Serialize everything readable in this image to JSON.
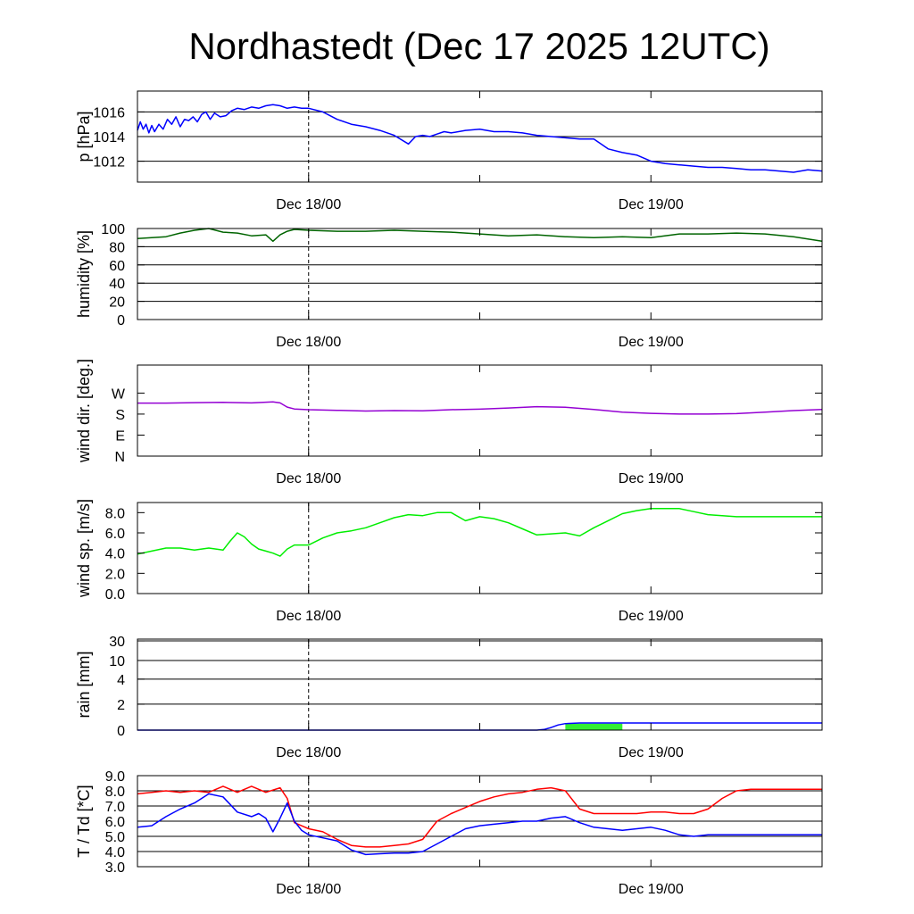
{
  "title": "Nordhastedt (Dec 17 2025 12UTC)",
  "colors": {
    "pressure": "#0000ff",
    "humidity": "#006400",
    "wind_dir": "#9400d3",
    "wind_speed": "#00ee00",
    "rain_line": "#0000ff",
    "rain_bar": "#33ee33",
    "temperature": "#ff0000",
    "dewpoint": "#0000ff",
    "grid": "#000000"
  },
  "chart_data": [
    {
      "type": "line",
      "name": "pressure",
      "ylabel": "p [hPa]",
      "ylim": [
        1010.3,
        1017.7
      ],
      "yticks": [
        1012,
        1014,
        1016
      ],
      "ytick_labels": [
        "1012",
        "1014",
        "1016"
      ],
      "gridlines": [
        1012,
        1014,
        1016
      ],
      "xlim": [
        -12,
        36
      ],
      "xticks": [
        0,
        24
      ],
      "xtick_labels": [
        "Dec 18/00",
        "Dec 19/00"
      ],
      "series": [
        {
          "color_key": "pressure",
          "x": [
            -12,
            -11.8,
            -11.6,
            -11.4,
            -11.2,
            -11.0,
            -10.8,
            -10.5,
            -10.2,
            -9.9,
            -9.6,
            -9.3,
            -9.0,
            -8.7,
            -8.4,
            -8.1,
            -7.8,
            -7.5,
            -7.2,
            -6.9,
            -6.6,
            -6.2,
            -5.8,
            -5.4,
            -5.0,
            -4.5,
            -4.0,
            -3.5,
            -3.0,
            -2.5,
            -2.0,
            -1.5,
            -1.0,
            -0.5,
            0,
            1,
            2,
            3,
            4,
            5,
            6,
            7,
            7.5,
            8,
            8.5,
            9,
            9.5,
            10,
            11,
            12,
            13,
            14,
            15,
            16,
            17,
            18,
            19,
            20,
            21,
            22,
            23,
            24,
            25,
            26,
            27,
            28,
            29,
            30,
            31,
            32,
            33,
            34,
            35,
            36
          ],
          "y": [
            1014.5,
            1015.2,
            1014.6,
            1015.0,
            1014.3,
            1014.9,
            1014.4,
            1015.0,
            1014.6,
            1015.4,
            1015.0,
            1015.6,
            1014.8,
            1015.4,
            1015.3,
            1015.6,
            1015.2,
            1015.8,
            1016.0,
            1015.4,
            1015.9,
            1015.6,
            1015.7,
            1016.1,
            1016.3,
            1016.2,
            1016.4,
            1016.3,
            1016.5,
            1016.6,
            1016.5,
            1016.3,
            1016.4,
            1016.3,
            1016.3,
            1016.0,
            1015.4,
            1015.0,
            1014.8,
            1014.5,
            1014.1,
            1013.4,
            1014.0,
            1014.1,
            1014.0,
            1014.2,
            1014.4,
            1014.3,
            1014.5,
            1014.6,
            1014.4,
            1014.4,
            1014.3,
            1014.1,
            1014.0,
            1013.9,
            1013.8,
            1013.8,
            1013.0,
            1012.7,
            1012.5,
            1012.0,
            1011.8,
            1011.7,
            1011.6,
            1011.5,
            1011.5,
            1011.4,
            1011.3,
            1011.3,
            1011.2,
            1011.1,
            1011.3,
            1011.2
          ]
        }
      ]
    },
    {
      "type": "line",
      "name": "humidity",
      "ylabel": "humidity [%]",
      "ylim": [
        0,
        100
      ],
      "yticks": [
        0,
        20,
        40,
        60,
        80,
        100
      ],
      "ytick_labels": [
        "0",
        "20",
        "40",
        "60",
        "80",
        "100"
      ],
      "gridlines": [
        20,
        40,
        60,
        80
      ],
      "xlim": [
        -12,
        36
      ],
      "xticks": [
        0,
        24
      ],
      "xtick_labels": [
        "Dec 18/00",
        "Dec 19/00"
      ],
      "series": [
        {
          "color_key": "humidity",
          "x": [
            -12,
            -11,
            -10,
            -9,
            -8,
            -7,
            -6,
            -5,
            -4,
            -3,
            -2.5,
            -2,
            -1.5,
            -1,
            0,
            2,
            4,
            6,
            8,
            10,
            12,
            14,
            16,
            18,
            20,
            22,
            24,
            26,
            28,
            30,
            32,
            34,
            36
          ],
          "y": [
            89,
            90,
            91,
            95,
            98,
            100,
            96,
            95,
            92,
            93,
            86,
            93,
            97,
            99,
            98,
            97,
            97,
            98,
            97,
            96,
            94,
            92,
            93,
            91,
            90,
            91,
            90,
            94,
            94,
            95,
            94,
            91,
            86
          ]
        }
      ]
    },
    {
      "type": "line",
      "name": "wind direction",
      "ylabel": "wind dir. [deg.]",
      "ylim": [
        0,
        390
      ],
      "yticks": [
        0,
        90,
        180,
        270
      ],
      "ytick_labels": [
        "N",
        "E",
        "S",
        "W"
      ],
      "gridlines": [],
      "xlim": [
        -12,
        36
      ],
      "xticks": [
        0,
        24
      ],
      "xtick_labels": [
        "Dec 18/00",
        "Dec 19/00"
      ],
      "series": [
        {
          "color_key": "wind_dir",
          "x": [
            -12,
            -10,
            -8,
            -6,
            -4,
            -2.5,
            -2,
            -1.5,
            -1,
            0,
            2,
            4,
            6,
            8,
            10,
            12,
            14,
            16,
            18,
            20,
            22,
            24,
            26,
            28,
            30,
            32,
            34,
            36
          ],
          "y": [
            227,
            227,
            229,
            230,
            228,
            232,
            228,
            210,
            202,
            199,
            196,
            193,
            195,
            194,
            199,
            201,
            206,
            212,
            209,
            200,
            188,
            183,
            180,
            180,
            182,
            188,
            195,
            200
          ]
        }
      ]
    },
    {
      "type": "line",
      "name": "wind speed",
      "ylabel": "wind sp. [m/s]",
      "ylim": [
        0,
        9
      ],
      "yticks": [
        0,
        2,
        4,
        6,
        8
      ],
      "ytick_labels": [
        "0.0",
        "2.0",
        "4.0",
        "6.0",
        "8.0"
      ],
      "gridlines": [],
      "xlim": [
        -12,
        36
      ],
      "xticks": [
        0,
        24
      ],
      "xtick_labels": [
        "Dec 18/00",
        "Dec 19/00"
      ],
      "series": [
        {
          "color_key": "wind_speed",
          "x": [
            -12,
            -11,
            -10,
            -9,
            -8,
            -7,
            -6,
            -5.5,
            -5,
            -4.5,
            -4,
            -3.5,
            -3,
            -2.5,
            -2,
            -1.5,
            -1,
            0,
            1,
            2,
            3,
            4,
            5,
            6,
            7,
            8,
            9,
            10,
            11,
            12,
            13,
            14,
            15,
            16,
            17,
            18,
            19,
            20,
            21,
            22,
            23,
            24,
            25,
            26,
            27,
            28,
            29,
            30,
            31,
            32,
            33,
            34,
            35,
            36
          ],
          "y": [
            3.9,
            4.2,
            4.5,
            4.5,
            4.3,
            4.5,
            4.3,
            5.2,
            6.0,
            5.6,
            4.9,
            4.4,
            4.2,
            4.0,
            3.7,
            4.4,
            4.8,
            4.8,
            5.5,
            6.0,
            6.2,
            6.5,
            7.0,
            7.5,
            7.8,
            7.7,
            8.0,
            8.0,
            7.2,
            7.6,
            7.4,
            7.0,
            6.4,
            5.8,
            5.9,
            6.0,
            5.7,
            6.5,
            7.2,
            7.9,
            8.2,
            8.4,
            8.4,
            8.4,
            8.1,
            7.8,
            7.7,
            7.6,
            7.6,
            7.6,
            7.6,
            7.6,
            7.6,
            7.6
          ],
          "x_trim_note": ""
        }
      ]
    },
    {
      "type": "area",
      "name": "rain",
      "ylabel": "rain [mm]",
      "ylim": [
        0,
        30
      ],
      "yticks": [
        0,
        2,
        4,
        10,
        30
      ],
      "ytick_labels": [
        "0",
        "2",
        "4",
        "10",
        "30"
      ],
      "gridlines": [
        2,
        4,
        10,
        30
      ],
      "xlim": [
        -12,
        36
      ],
      "xticks": [
        0,
        24
      ],
      "xtick_labels": [
        "Dec 18/00",
        "Dec 19/00"
      ],
      "bars": [
        {
          "x0": 18,
          "x1": 22,
          "value": 0.5
        }
      ],
      "series": [
        {
          "color_key": "rain_line",
          "x": [
            -12,
            16,
            16.5,
            17,
            17.5,
            18,
            19,
            20,
            21,
            22,
            24,
            28,
            32,
            36
          ],
          "y": [
            0,
            0,
            0.05,
            0.2,
            0.4,
            0.5,
            0.55,
            0.55,
            0.55,
            0.55,
            0.55,
            0.55,
            0.55,
            0.55
          ]
        }
      ]
    },
    {
      "type": "line",
      "name": "temperature / dewpoint",
      "ylabel": "T / Td [*C]",
      "ylim": [
        3,
        9
      ],
      "yticks": [
        3,
        4,
        5,
        6,
        7,
        8,
        9
      ],
      "ytick_labels": [
        "3.0",
        "4.0",
        "5.0",
        "6.0",
        "7.0",
        "8.0",
        "9.0"
      ],
      "gridlines": [
        4,
        5,
        6,
        7,
        8
      ],
      "xlim": [
        -12,
        36
      ],
      "xticks": [
        0,
        24
      ],
      "xtick_labels": [
        "Dec 18/00",
        "Dec 19/00"
      ],
      "series": [
        {
          "color_key": "temperature",
          "x": [
            -12,
            -11,
            -10,
            -9,
            -8,
            -7,
            -6,
            -5,
            -4,
            -3,
            -2,
            -1.5,
            -1,
            -0.5,
            0,
            1,
            2,
            3,
            4,
            5,
            6,
            7,
            8,
            9,
            10,
            11,
            12,
            13,
            14,
            15,
            16,
            17,
            18,
            19,
            20,
            21,
            22,
            23,
            24,
            25,
            26,
            27,
            28,
            29,
            30,
            31,
            32,
            33,
            34,
            35,
            36
          ],
          "y": [
            7.8,
            7.9,
            8.0,
            7.9,
            8.0,
            7.9,
            8.3,
            7.9,
            8.3,
            7.9,
            8.2,
            7.5,
            5.9,
            5.7,
            5.5,
            5.3,
            4.8,
            4.4,
            4.3,
            4.3,
            4.4,
            4.5,
            4.8,
            6.0,
            6.5,
            6.9,
            7.3,
            7.6,
            7.8,
            7.9,
            8.1,
            8.2,
            8.0,
            6.8,
            6.5,
            6.5,
            6.5,
            6.5,
            6.6,
            6.6,
            6.5,
            6.5,
            6.8,
            7.5,
            8.0,
            8.1,
            8.1,
            8.1,
            8.1,
            8.1,
            8.1
          ]
        },
        {
          "color_key": "dewpoint",
          "x": [
            -12,
            -11,
            -10,
            -9,
            -8,
            -7,
            -6,
            -5,
            -4,
            -3.5,
            -3,
            -2.5,
            -2,
            -1.5,
            -1,
            -0.5,
            0,
            1,
            2,
            3,
            4,
            5,
            6,
            7,
            8,
            9,
            10,
            11,
            12,
            13,
            14,
            15,
            16,
            17,
            18,
            19,
            20,
            21,
            22,
            23,
            24,
            25,
            26,
            27,
            28,
            29,
            30,
            31,
            32,
            33,
            34,
            35,
            36
          ],
          "y": [
            5.6,
            5.7,
            6.3,
            6.8,
            7.2,
            7.8,
            7.6,
            6.6,
            6.3,
            6.5,
            6.2,
            5.3,
            6.2,
            7.2,
            6.0,
            5.4,
            5.1,
            4.9,
            4.7,
            4.1,
            3.8,
            3.85,
            3.9,
            3.9,
            4.0,
            4.5,
            5.0,
            5.5,
            5.7,
            5.8,
            5.9,
            6.0,
            6.0,
            6.2,
            6.3,
            5.9,
            5.6,
            5.5,
            5.4,
            5.5,
            5.6,
            5.4,
            5.1,
            5.0,
            5.1,
            5.1,
            5.1,
            5.1,
            5.1,
            5.1,
            5.1,
            5.1,
            5.1
          ]
        }
      ]
    }
  ]
}
